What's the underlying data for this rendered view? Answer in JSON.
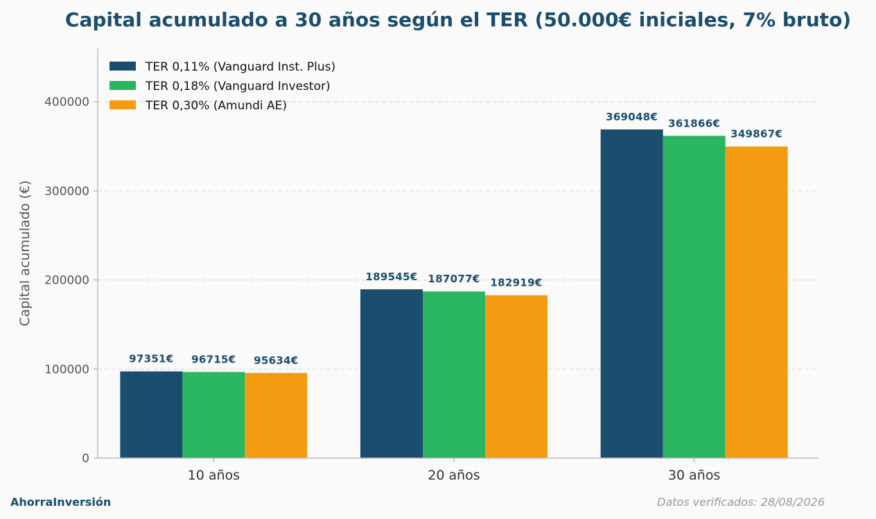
{
  "chart_data": {
    "type": "bar",
    "title": "Capital acumulado a 30 años según el TER (50.000€ iniciales, 7% bruto)",
    "ylabel": "Capital acumulado (€)",
    "xlabel": "",
    "categories": [
      "10 años",
      "20 años",
      "30 años"
    ],
    "series": [
      {
        "name": "TER 0,11% (Vanguard Inst. Plus)",
        "color": "#1a4d6e",
        "values": [
          97351,
          189545,
          369048
        ],
        "labels": [
          "97351€",
          "189545€",
          "369048€"
        ]
      },
      {
        "name": "TER 0,18% (Vanguard Investor)",
        "color": "#2ab562",
        "values": [
          96715,
          187077,
          361866
        ],
        "labels": [
          "96715€",
          "187077€",
          "361866€"
        ]
      },
      {
        "name": "TER 0,30% (Amundi AE)",
        "color": "#f39c12",
        "values": [
          95634,
          182919,
          349867
        ],
        "labels": [
          "95634€",
          "182919€",
          "349867€"
        ]
      }
    ],
    "ylim": [
      0,
      460000
    ],
    "yticks": [
      0,
      100000,
      200000,
      300000,
      400000
    ],
    "ytick_labels": [
      "0",
      "100000",
      "200000",
      "300000",
      "400000"
    ],
    "grid": "horizontal-dashed",
    "legend_position": "top-left"
  },
  "footer": {
    "brand": "AhorraInversión",
    "verified": "Datos verificados: 28/08/2026"
  }
}
